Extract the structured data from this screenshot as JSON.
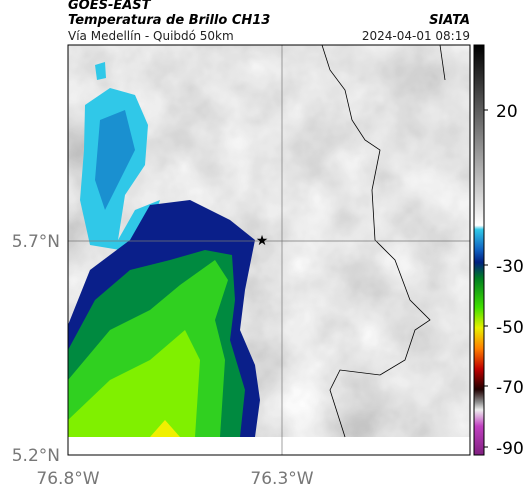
{
  "header": {
    "source": "GOES-EAST",
    "title": "Temperatura de Brillo CH13",
    "agency": "SIATA",
    "subtitle": "Vía Medellín - Quibdó 50km",
    "timestamp": "2024-04-01 08:19"
  },
  "map": {
    "lat_labels": [
      "5.7°N",
      "5.2°N"
    ],
    "lon_labels": [
      "76.8°W",
      "76.3°W"
    ]
  },
  "colorbar": {
    "labels": [
      "20",
      "-30",
      "-50",
      "-70",
      "-90"
    ]
  }
}
